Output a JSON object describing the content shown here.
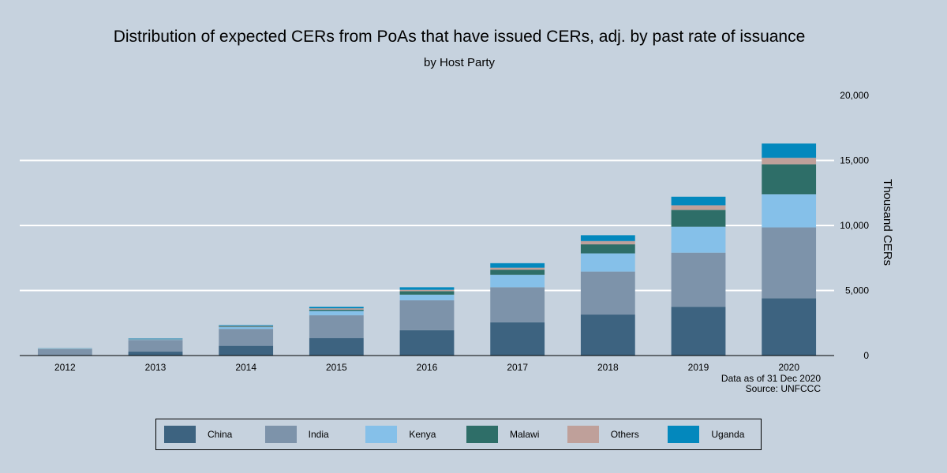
{
  "chart_data": {
    "type": "bar",
    "stacked": true,
    "title": "Distribution of expected CERs from PoAs that have issued CERs, adj. by past rate of issuance",
    "subtitle": "by Host Party",
    "xlabel": "",
    "ylabel": "Thousand CERs",
    "ylim": [
      0,
      20000
    ],
    "yticks": [
      0,
      5000,
      10000,
      15000,
      20000
    ],
    "ytick_labels": [
      "0",
      "5,000",
      "10,000",
      "15,000",
      "20,000"
    ],
    "categories": [
      "2012",
      "2013",
      "2014",
      "2015",
      "2016",
      "2017",
      "2018",
      "2019",
      "2020"
    ],
    "series": [
      {
        "name": "China",
        "color": "#3d6380",
        "values": [
          50,
          300,
          750,
          1350,
          1950,
          2550,
          3150,
          3750,
          4400
        ]
      },
      {
        "name": "India",
        "color": "#7d93aa",
        "values": [
          450,
          900,
          1300,
          1750,
          2300,
          2700,
          3300,
          4150,
          5450
        ]
      },
      {
        "name": "Kenya",
        "color": "#85c0e9",
        "values": [
          30,
          50,
          130,
          330,
          430,
          950,
          1400,
          2000,
          2550
        ]
      },
      {
        "name": "Malawi",
        "color": "#2e6e68",
        "values": [
          10,
          20,
          50,
          100,
          270,
          400,
          700,
          1300,
          2300
        ]
      },
      {
        "name": "Others",
        "color": "#bfa09a",
        "values": [
          10,
          20,
          50,
          100,
          100,
          150,
          250,
          350,
          500
        ]
      },
      {
        "name": "Uganda",
        "color": "#0388bd",
        "values": [
          10,
          30,
          60,
          120,
          200,
          350,
          450,
          650,
          1100
        ]
      }
    ],
    "annotation": [
      "Data as of 31 Dec 2020",
      "Source: UNFCCC"
    ]
  }
}
